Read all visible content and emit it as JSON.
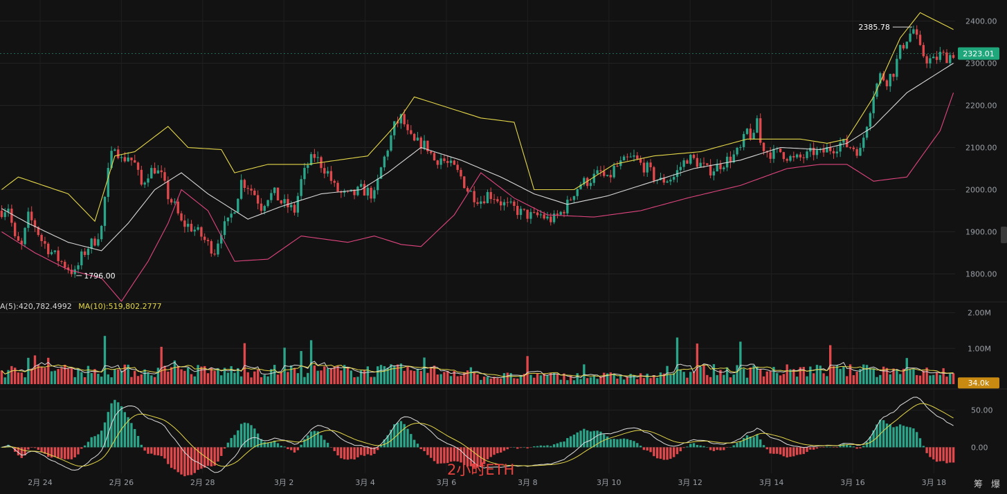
{
  "chart_data": {
    "type": "candlestick",
    "dates": [
      "2月 24",
      "2月 26",
      "2月 28",
      "3月 2",
      "3月 4",
      "3月 6",
      "3月 8",
      "3月 10",
      "3月 12",
      "3月 14",
      "3月 16",
      "3月 18"
    ],
    "price_ticks": [
      "2400.00",
      "2300.00",
      "2200.00",
      "2100.00",
      "2000.00",
      "1900.00",
      "1800.00"
    ],
    "price_range": [
      1745,
      2450
    ],
    "current_price": "2323.01",
    "high_label": "2385.78",
    "low_label": "1796.00",
    "price_path": [
      [
        0,
        1950
      ],
      [
        2,
        1960
      ],
      [
        4,
        1880
      ],
      [
        6,
        1865
      ],
      [
        8,
        1935
      ],
      [
        10,
        1915
      ],
      [
        12,
        1880
      ],
      [
        14,
        1860
      ],
      [
        17,
        1835
      ],
      [
        20,
        1815
      ],
      [
        22,
        1800
      ],
      [
        24,
        1840
      ],
      [
        26,
        1865
      ],
      [
        28,
        1880
      ],
      [
        30,
        1910
      ],
      [
        31,
        1980
      ],
      [
        32,
        2040
      ],
      [
        33,
        2080
      ],
      [
        34,
        2110
      ],
      [
        35,
        2090
      ],
      [
        36,
        2070
      ],
      [
        38,
        2080
      ],
      [
        40,
        2060
      ],
      [
        42,
        2010
      ],
      [
        44,
        2040
      ],
      [
        46,
        2050
      ],
      [
        48,
        2030
      ],
      [
        50,
        1985
      ],
      [
        52,
        1960
      ],
      [
        54,
        1920
      ],
      [
        56,
        1915
      ],
      [
        58,
        1905
      ],
      [
        60,
        1890
      ],
      [
        62,
        1870
      ],
      [
        64,
        1855
      ],
      [
        66,
        1905
      ],
      [
        68,
        1920
      ],
      [
        70,
        1960
      ],
      [
        72,
        2020
      ],
      [
        74,
        2010
      ],
      [
        76,
        1990
      ],
      [
        78,
        1960
      ],
      [
        80,
        1985
      ],
      [
        82,
        1990
      ],
      [
        84,
        1970
      ],
      [
        86,
        1960
      ],
      [
        88,
        1950
      ],
      [
        90,
        2020
      ],
      [
        92,
        2060
      ],
      [
        94,
        2080
      ],
      [
        96,
        2060
      ],
      [
        98,
        2040
      ],
      [
        100,
        2005
      ],
      [
        102,
        1990
      ],
      [
        104,
        1985
      ],
      [
        106,
        1990
      ],
      [
        108,
        2000
      ],
      [
        110,
        1995
      ],
      [
        112,
        1985
      ],
      [
        114,
        2050
      ],
      [
        116,
        2100
      ],
      [
        118,
        2150
      ],
      [
        120,
        2170
      ],
      [
        121,
        2155
      ],
      [
        122,
        2130
      ],
      [
        124,
        2110
      ],
      [
        126,
        2110
      ],
      [
        128,
        2100
      ],
      [
        130,
        2070
      ],
      [
        132,
        2075
      ],
      [
        134,
        2060
      ],
      [
        136,
        2050
      ],
      [
        138,
        2030
      ],
      [
        140,
        2000
      ],
      [
        142,
        1985
      ],
      [
        144,
        1975
      ],
      [
        146,
        1990
      ],
      [
        148,
        1985
      ],
      [
        150,
        1970
      ],
      [
        152,
        1960
      ],
      [
        154,
        1955
      ],
      [
        156,
        1945
      ],
      [
        158,
        1940
      ],
      [
        160,
        1935
      ],
      [
        162,
        1940
      ],
      [
        164,
        1930
      ],
      [
        166,
        1930
      ],
      [
        168,
        1945
      ],
      [
        170,
        1965
      ],
      [
        172,
        1995
      ],
      [
        174,
        2015
      ],
      [
        176,
        2020
      ],
      [
        178,
        2030
      ],
      [
        180,
        2040
      ],
      [
        182,
        2020
      ],
      [
        184,
        2050
      ],
      [
        186,
        2060
      ],
      [
        188,
        2070
      ],
      [
        190,
        2075
      ],
      [
        192,
        2060
      ],
      [
        194,
        2050
      ],
      [
        196,
        2030
      ],
      [
        198,
        2020
      ],
      [
        200,
        2025
      ],
      [
        202,
        2030
      ],
      [
        204,
        2055
      ],
      [
        206,
        2075
      ],
      [
        208,
        2070
      ],
      [
        210,
        2060
      ],
      [
        212,
        2045
      ],
      [
        214,
        2050
      ],
      [
        216,
        2060
      ],
      [
        218,
        2070
      ],
      [
        220,
        2080
      ],
      [
        222,
        2095
      ],
      [
        224,
        2140
      ],
      [
        226,
        2120
      ],
      [
        227,
        2170
      ],
      [
        228,
        2110
      ],
      [
        230,
        2090
      ],
      [
        232,
        2085
      ],
      [
        234,
        2090
      ],
      [
        236,
        2080
      ],
      [
        238,
        2070
      ],
      [
        240,
        2075
      ],
      [
        242,
        2080
      ],
      [
        244,
        2090
      ],
      [
        246,
        2085
      ],
      [
        248,
        2095
      ],
      [
        250,
        2100
      ],
      [
        252,
        2110
      ],
      [
        254,
        2105
      ],
      [
        256,
        2100
      ],
      [
        258,
        2090
      ],
      [
        260,
        2160
      ],
      [
        262,
        2230
      ],
      [
        264,
        2270
      ],
      [
        266,
        2260
      ],
      [
        268,
        2280
      ],
      [
        270,
        2330
      ],
      [
        272,
        2360
      ],
      [
        274,
        2380
      ],
      [
        276,
        2330
      ],
      [
        278,
        2310
      ],
      [
        280,
        2305
      ],
      [
        282,
        2320
      ],
      [
        284,
        2315
      ],
      [
        286,
        2323
      ]
    ],
    "series": [
      {
        "name": "",
        "color": "#e6d84a",
        "values": [
          [
            0,
            2000
          ],
          [
            5,
            2030
          ],
          [
            20,
            1990
          ],
          [
            28,
            1925
          ],
          [
            34,
            2080
          ],
          [
            40,
            2090
          ],
          [
            50,
            2150
          ],
          [
            56,
            2100
          ],
          [
            66,
            2095
          ],
          [
            70,
            2040
          ],
          [
            80,
            2060
          ],
          [
            92,
            2060
          ],
          [
            110,
            2080
          ],
          [
            118,
            2150
          ],
          [
            124,
            2220
          ],
          [
            132,
            2200
          ],
          [
            144,
            2170
          ],
          [
            154,
            2160
          ],
          [
            160,
            2000
          ],
          [
            172,
            2000
          ],
          [
            184,
            2060
          ],
          [
            196,
            2080
          ],
          [
            210,
            2090
          ],
          [
            224,
            2120
          ],
          [
            240,
            2120
          ],
          [
            248,
            2110
          ],
          [
            254,
            2120
          ],
          [
            262,
            2220
          ],
          [
            270,
            2360
          ],
          [
            276,
            2420
          ],
          [
            286,
            2380
          ]
        ]
      },
      {
        "name": "",
        "color": "#d9d9d9",
        "values": [
          [
            0,
            1955
          ],
          [
            8,
            1920
          ],
          [
            20,
            1875
          ],
          [
            30,
            1855
          ],
          [
            38,
            1920
          ],
          [
            46,
            2000
          ],
          [
            54,
            2040
          ],
          [
            62,
            1990
          ],
          [
            74,
            1930
          ],
          [
            84,
            1960
          ],
          [
            96,
            1990
          ],
          [
            108,
            2000
          ],
          [
            116,
            2040
          ],
          [
            126,
            2100
          ],
          [
            138,
            2070
          ],
          [
            150,
            2030
          ],
          [
            160,
            1990
          ],
          [
            170,
            1965
          ],
          [
            182,
            1985
          ],
          [
            194,
            2015
          ],
          [
            208,
            2050
          ],
          [
            222,
            2070
          ],
          [
            234,
            2100
          ],
          [
            246,
            2095
          ],
          [
            254,
            2110
          ],
          [
            262,
            2150
          ],
          [
            272,
            2230
          ],
          [
            286,
            2300
          ]
        ]
      },
      {
        "name": "",
        "color": "#e0457f",
        "values": [
          [
            0,
            1900
          ],
          [
            10,
            1850
          ],
          [
            20,
            1810
          ],
          [
            30,
            1790
          ],
          [
            36,
            1735
          ],
          [
            44,
            1830
          ],
          [
            50,
            1920
          ],
          [
            54,
            2000
          ],
          [
            62,
            1950
          ],
          [
            70,
            1830
          ],
          [
            80,
            1835
          ],
          [
            90,
            1890
          ],
          [
            104,
            1875
          ],
          [
            112,
            1890
          ],
          [
            120,
            1870
          ],
          [
            126,
            1865
          ],
          [
            136,
            1940
          ],
          [
            144,
            2040
          ],
          [
            154,
            1980
          ],
          [
            164,
            1940
          ],
          [
            178,
            1935
          ],
          [
            192,
            1950
          ],
          [
            206,
            1980
          ],
          [
            222,
            2010
          ],
          [
            236,
            2050
          ],
          [
            246,
            2060
          ],
          [
            254,
            2060
          ],
          [
            262,
            2020
          ],
          [
            272,
            2030
          ],
          [
            282,
            2140
          ],
          [
            286,
            2230
          ]
        ]
      }
    ],
    "volume": {
      "ticks": [
        "2.00M",
        "1.00M"
      ],
      "range": [
        0,
        2050000
      ],
      "current": "34.0k",
      "ma5_label": "A(5):420,782.4992",
      "ma10_label": "MA(10):519,802.2777"
    },
    "macd": {
      "ticks": [
        "50.00",
        "0.00"
      ],
      "range": [
        -35,
        72
      ]
    },
    "watermark": "2小时ETH",
    "corner_labels": [
      "筹",
      "爆"
    ]
  }
}
